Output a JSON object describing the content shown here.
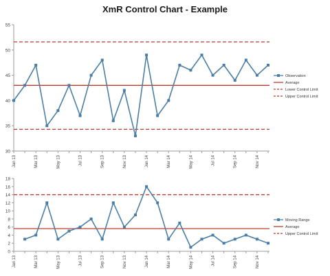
{
  "chart_data": [
    {
      "type": "line",
      "title": "XmR Control Chart - Example",
      "xlabel": "",
      "ylabel": "",
      "ylim": [
        30,
        55
      ],
      "yticks": [
        "30",
        "35",
        "40",
        "45",
        "50",
        "55"
      ],
      "grid": false,
      "legend_position": "right",
      "x": [
        "Jan 13",
        "Feb 13",
        "Mar 13",
        "Apr 13",
        "May 13",
        "Jun 13",
        "Jul 13",
        "Aug 13",
        "Sep 13",
        "Oct 13",
        "Nov 13",
        "Dec 13",
        "Jan 14",
        "Feb 14",
        "Mar 14",
        "Apr 14",
        "May 14",
        "Jun 14",
        "Jul 14",
        "Aug 14",
        "Sep 14",
        "Oct 14",
        "Nov 14",
        "Dec 14"
      ],
      "xtick_labels": [
        "Jan 13",
        "Mar 13",
        "May 13",
        "Jul 13",
        "Sep 13",
        "Nov 13",
        "Jan 14",
        "Mar 14",
        "May 14",
        "Jul 14",
        "Sep 14",
        "Nov 14"
      ],
      "series": [
        {
          "name": "Observation",
          "style": "line-marker",
          "color": "#4a7ea6",
          "values": [
            40,
            43,
            47,
            35,
            38,
            43,
            37,
            45,
            48,
            36,
            42,
            33,
            49,
            37,
            40,
            47,
            46,
            49,
            45,
            47,
            44,
            48,
            45,
            47
          ]
        },
        {
          "name": "Average",
          "style": "solid",
          "color": "#c0392b",
          "constant": 43
        },
        {
          "name": "Lower Control Limit",
          "style": "dashed",
          "color": "#c0392b",
          "constant": 34.3
        },
        {
          "name": "Upper Control Limit",
          "style": "dashed",
          "color": "#c0392b",
          "constant": 51.6
        }
      ]
    },
    {
      "type": "line",
      "title": "",
      "xlabel": "",
      "ylabel": "",
      "ylim": [
        0,
        18
      ],
      "yticks": [
        "0",
        "2",
        "4",
        "6",
        "8",
        "10",
        "12",
        "14",
        "16",
        "18"
      ],
      "grid": false,
      "legend_position": "right",
      "x": [
        "Feb 13",
        "Mar 13",
        "Apr 13",
        "May 13",
        "Jun 13",
        "Jul 13",
        "Aug 13",
        "Sep 13",
        "Oct 13",
        "Nov 13",
        "Dec 13",
        "Jan 14",
        "Feb 14",
        "Mar 14",
        "Apr 14",
        "May 14",
        "Jun 14",
        "Jul 14",
        "Aug 14",
        "Sep 14",
        "Oct 14",
        "Nov 14",
        "Dec 14"
      ],
      "xtick_labels": [
        "Jan 13",
        "Mar 13",
        "May 13",
        "Jul 13",
        "Sep 13",
        "Nov 13",
        "Jan 14",
        "Mar 14",
        "May 14",
        "Jul 14",
        "Sep 14",
        "Nov 14"
      ],
      "series": [
        {
          "name": "Moving Range",
          "style": "line-marker",
          "color": "#4a7ea6",
          "values": [
            3,
            4,
            12,
            3,
            5,
            6,
            8,
            3,
            12,
            6,
            9,
            16,
            12,
            3,
            7,
            1,
            3,
            4,
            2,
            3,
            4,
            3,
            2
          ]
        },
        {
          "name": "Average",
          "style": "solid",
          "color": "#c0392b",
          "constant": 5.6
        },
        {
          "name": "Upper Control Limit",
          "style": "dashed",
          "color": "#c0392b",
          "constant": 14
        }
      ]
    }
  ]
}
